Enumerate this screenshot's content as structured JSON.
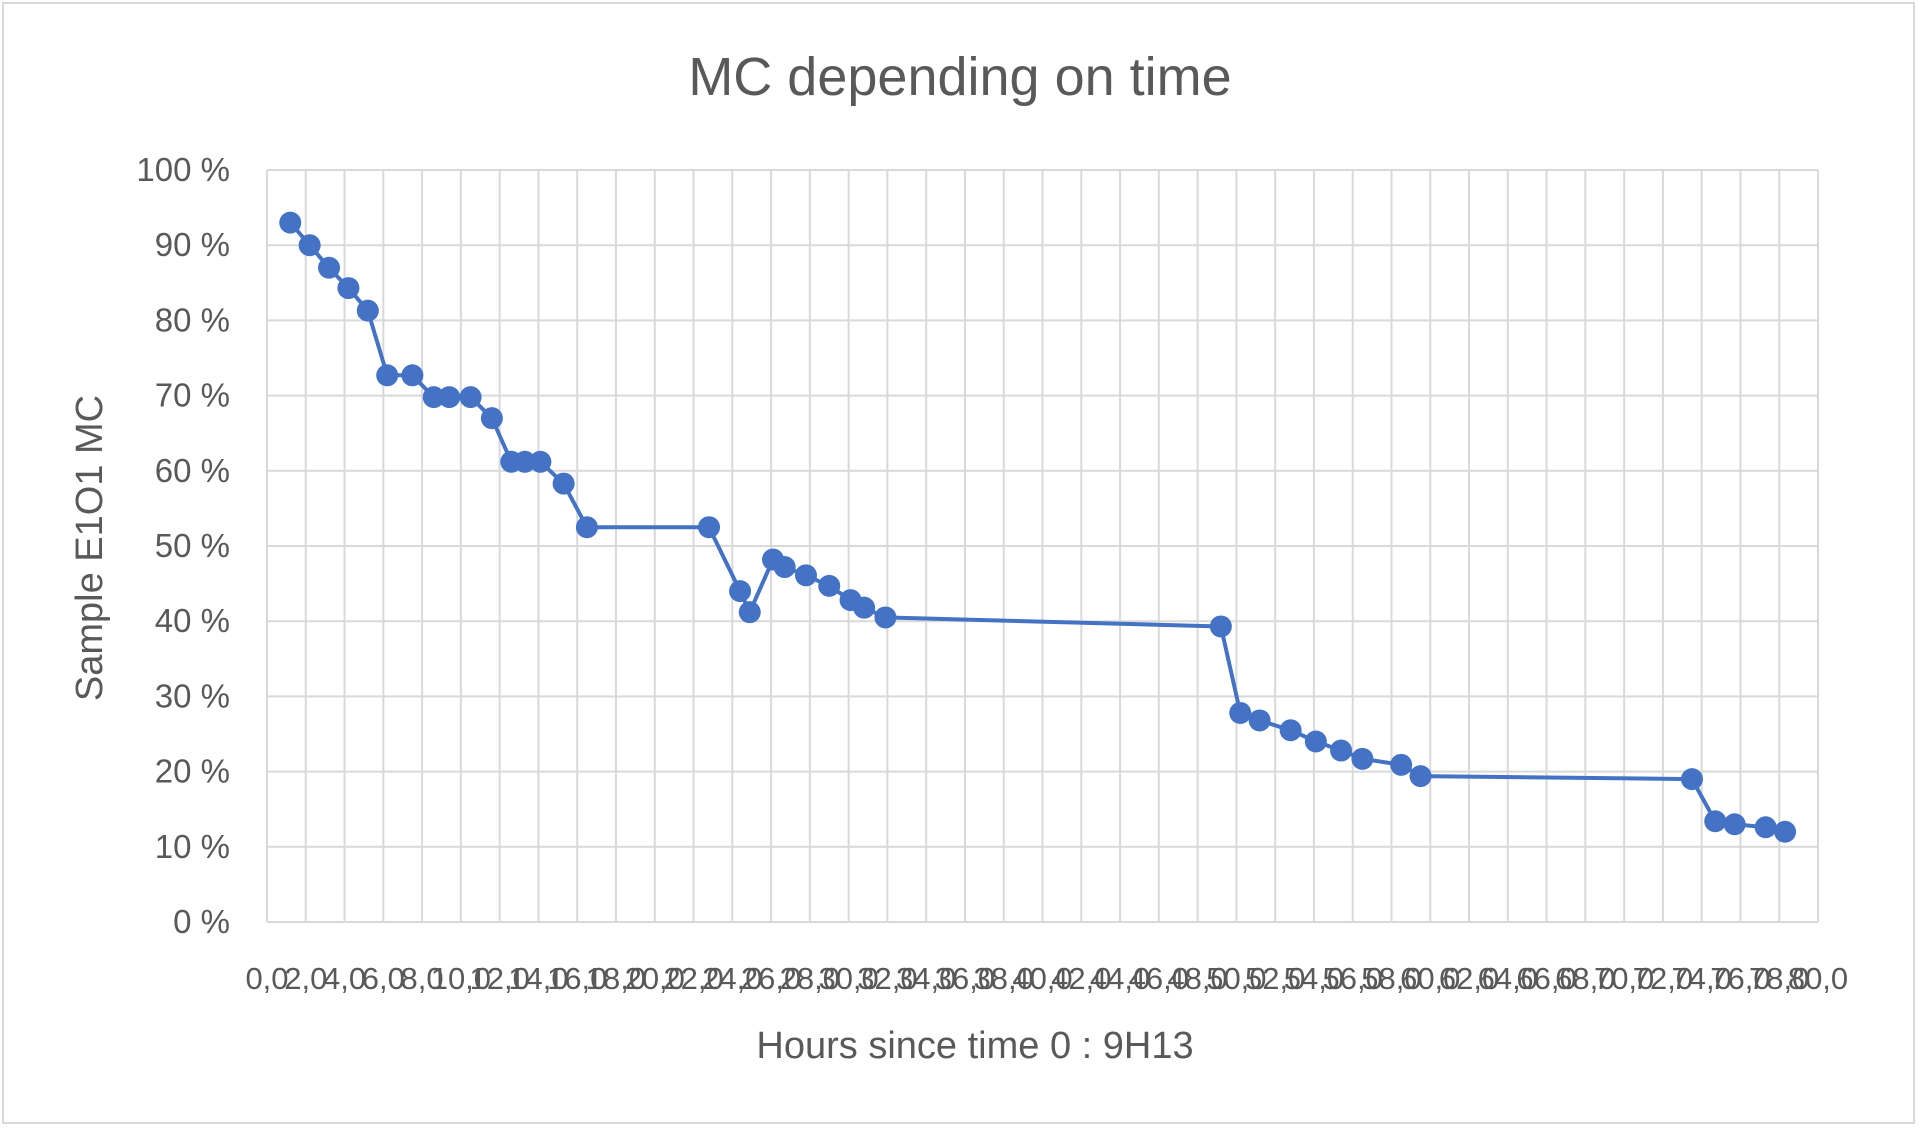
{
  "chart_data": {
    "type": "scatter",
    "title": "MC depending on time",
    "xlabel": "Hours since time 0 : 9H13",
    "ylabel": "Sample E1O1 MC",
    "xlim": [
      0,
      80
    ],
    "ylim": [
      0,
      1
    ],
    "x_tick_step": 2,
    "y_tick_labels": [
      "0 %",
      "10 %",
      "20 %",
      "30 %",
      "40 %",
      "50 %",
      "60 %",
      "70 %",
      "80 %",
      "90 %",
      "100 %"
    ],
    "x_tick_labels": [
      "0,0",
      "2,0",
      "4,0",
      "6,0",
      "8,0",
      "10,0",
      "12,0",
      "14,0",
      "16,0",
      "18,0",
      "20,0",
      "22,0",
      "24,0",
      "26,0",
      "28,0",
      "30,0",
      "32,0",
      "34,0",
      "36,0",
      "38,0",
      "40,0",
      "42,0",
      "44,0",
      "46,0",
      "48,0",
      "50,0",
      "52,0",
      "54,0",
      "56,0",
      "58,0",
      "60,0",
      "62,0",
      "64,0",
      "66,0",
      "68,0",
      "70,0",
      "72,0",
      "74,0",
      "76,0",
      "78,0",
      "80,0"
    ],
    "grid": true,
    "line_color": "#4472c4",
    "series": [
      {
        "x": [
          1.2,
          2.2,
          3.2,
          4.2,
          5.2,
          6.2,
          7.5,
          8.6,
          9.4,
          10.5,
          11.6,
          12.6,
          13.3,
          14.1,
          15.3,
          16.5,
          22.8,
          24.4,
          24.9,
          26.1,
          26.7,
          27.8,
          29.0,
          30.1,
          30.8,
          31.9,
          49.2,
          50.2,
          51.2,
          52.8,
          54.1,
          55.4,
          56.5,
          58.5,
          59.5,
          73.5,
          74.7,
          75.7,
          77.3,
          78.3
        ],
        "y": [
          0.93,
          0.9,
          0.87,
          0.843,
          0.813,
          0.727,
          0.727,
          0.698,
          0.698,
          0.698,
          0.67,
          0.612,
          0.612,
          0.612,
          0.583,
          0.525,
          0.525,
          0.44,
          0.412,
          0.482,
          0.472,
          0.461,
          0.447,
          0.428,
          0.418,
          0.405,
          0.393,
          0.278,
          0.268,
          0.255,
          0.24,
          0.228,
          0.217,
          0.209,
          0.194,
          0.19,
          0.134,
          0.13,
          0.126,
          0.12
        ]
      }
    ]
  }
}
